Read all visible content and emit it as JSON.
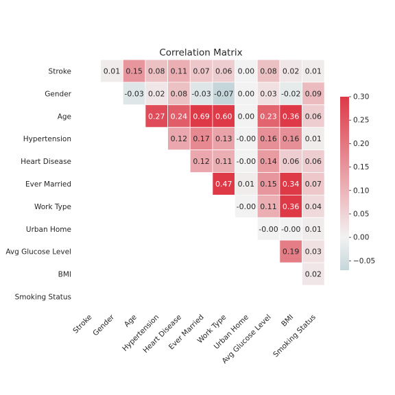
{
  "chart_data": {
    "type": "heatmap",
    "title": "Correlation Matrix",
    "variables": [
      "Stroke",
      "Gender",
      "Age",
      "Hypertension",
      "Heart Disease",
      "Ever Married",
      "Work Type",
      "Urban Home",
      "Avg Glucose Level",
      "BMI",
      "Smoking Status"
    ],
    "mask": "lower-triangle-and-diagonal",
    "matrix": [
      [
        null,
        "0.01",
        "0.15",
        "0.08",
        "0.11",
        "0.07",
        "0.06",
        "0.00",
        "0.08",
        "0.02",
        "0.01"
      ],
      [
        null,
        null,
        "-0.03",
        "0.02",
        "0.08",
        "-0.03",
        "-0.07",
        "0.00",
        "0.03",
        "-0.02",
        "0.09"
      ],
      [
        null,
        null,
        null,
        "0.27",
        "0.24",
        "0.69",
        "0.60",
        "0.00",
        "0.23",
        "0.36",
        "0.06"
      ],
      [
        null,
        null,
        null,
        null,
        "0.12",
        "0.17",
        "0.13",
        "-0.00",
        "0.16",
        "0.16",
        "0.01"
      ],
      [
        null,
        null,
        null,
        null,
        null,
        "0.12",
        "0.11",
        "-0.00",
        "0.14",
        "0.06",
        "0.06"
      ],
      [
        null,
        null,
        null,
        null,
        null,
        null,
        "0.47",
        "0.01",
        "0.15",
        "0.34",
        "0.07"
      ],
      [
        null,
        null,
        null,
        null,
        null,
        null,
        null,
        "-0.00",
        "0.11",
        "0.36",
        "0.04"
      ],
      [
        null,
        null,
        null,
        null,
        null,
        null,
        null,
        null,
        "-0.00",
        "-0.00",
        "0.01"
      ],
      [
        null,
        null,
        null,
        null,
        null,
        null,
        null,
        null,
        null,
        "0.19",
        "0.03"
      ],
      [
        null,
        null,
        null,
        null,
        null,
        null,
        null,
        null,
        null,
        null,
        "0.02"
      ],
      [
        null,
        null,
        null,
        null,
        null,
        null,
        null,
        null,
        null,
        null,
        null
      ]
    ],
    "colorbar": {
      "vmin": -0.07,
      "vmax": 0.3,
      "ticks": [
        "0.30",
        "0.25",
        "0.20",
        "0.15",
        "0.10",
        "0.05",
        "0.00",
        "−0.05"
      ],
      "negative_color": "#c5d6da",
      "center_color": "#f2f2f2",
      "positive_color": "#dd3947"
    },
    "grid_line_color": "#ffffff"
  }
}
